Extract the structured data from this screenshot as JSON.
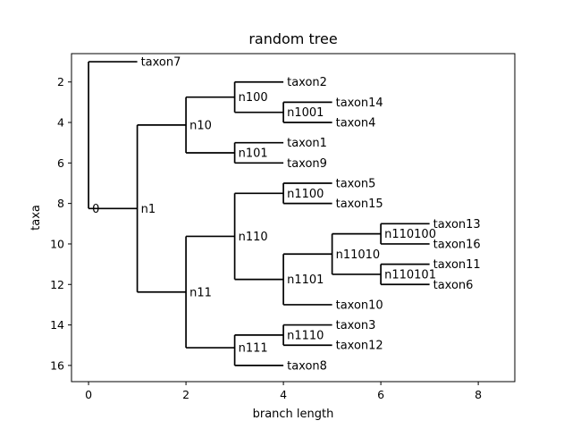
{
  "chart_data": {
    "type": "tree",
    "title": "random tree",
    "xlabel": "branch length",
    "ylabel": "taxa",
    "xlim": [
      -0.35,
      8.75
    ],
    "ylim": [
      16.8,
      0.6
    ],
    "y_inverted": true,
    "grid": false,
    "xticks": [
      0,
      2,
      4,
      6,
      8
    ],
    "yticks": [
      2,
      4,
      6,
      8,
      10,
      12,
      14,
      16
    ],
    "nodes": [
      {
        "name": "0",
        "x": 0,
        "y": 8.25,
        "parent": null
      },
      {
        "name": "taxon7",
        "x": 1,
        "y": 1,
        "parent": "0"
      },
      {
        "name": "n1",
        "x": 1,
        "y": 8.25,
        "parent": "0"
      },
      {
        "name": "n10",
        "x": 2,
        "y": 4.125,
        "parent": "n1"
      },
      {
        "name": "n100",
        "x": 3,
        "y": 2.75,
        "parent": "n10"
      },
      {
        "name": "taxon2",
        "x": 4,
        "y": 2,
        "parent": "n100"
      },
      {
        "name": "n1001",
        "x": 4,
        "y": 3.5,
        "parent": "n100"
      },
      {
        "name": "taxon14",
        "x": 5,
        "y": 3,
        "parent": "n1001"
      },
      {
        "name": "taxon4",
        "x": 5,
        "y": 4,
        "parent": "n1001"
      },
      {
        "name": "n101",
        "x": 3,
        "y": 5.5,
        "parent": "n10"
      },
      {
        "name": "taxon1",
        "x": 4,
        "y": 5,
        "parent": "n101"
      },
      {
        "name": "taxon9",
        "x": 4,
        "y": 6,
        "parent": "n101"
      },
      {
        "name": "n11",
        "x": 2,
        "y": 12.375,
        "parent": "n1"
      },
      {
        "name": "n110",
        "x": 3,
        "y": 9.625,
        "parent": "n11"
      },
      {
        "name": "n1100",
        "x": 4,
        "y": 7.5,
        "parent": "n110"
      },
      {
        "name": "taxon5",
        "x": 5,
        "y": 7,
        "parent": "n1100"
      },
      {
        "name": "taxon15",
        "x": 5,
        "y": 8,
        "parent": "n1100"
      },
      {
        "name": "n1101",
        "x": 4,
        "y": 11.75,
        "parent": "n110"
      },
      {
        "name": "n11010",
        "x": 5,
        "y": 10.5,
        "parent": "n1101"
      },
      {
        "name": "n110100",
        "x": 6,
        "y": 9.5,
        "parent": "n11010"
      },
      {
        "name": "taxon13",
        "x": 7,
        "y": 9,
        "parent": "n110100"
      },
      {
        "name": "taxon16",
        "x": 7,
        "y": 10,
        "parent": "n110100"
      },
      {
        "name": "n110101",
        "x": 6,
        "y": 11.5,
        "parent": "n11010"
      },
      {
        "name": "taxon11",
        "x": 7,
        "y": 11,
        "parent": "n110101"
      },
      {
        "name": "taxon6",
        "x": 7,
        "y": 12,
        "parent": "n110101"
      },
      {
        "name": "taxon10",
        "x": 5,
        "y": 13,
        "parent": "n1101"
      },
      {
        "name": "n111",
        "x": 3,
        "y": 15.125,
        "parent": "n11"
      },
      {
        "name": "n1110",
        "x": 4,
        "y": 14.5,
        "parent": "n111"
      },
      {
        "name": "taxon3",
        "x": 5,
        "y": 14,
        "parent": "n1110"
      },
      {
        "name": "taxon12",
        "x": 5,
        "y": 15,
        "parent": "n1110"
      },
      {
        "name": "taxon8",
        "x": 4,
        "y": 16,
        "parent": "n111"
      }
    ]
  }
}
